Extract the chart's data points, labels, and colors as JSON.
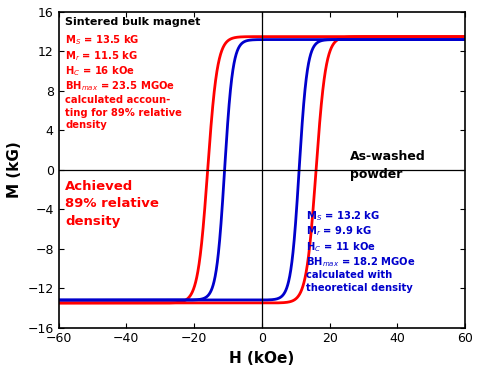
{
  "xlabel": "H (kOe)",
  "ylabel": "M (kG)",
  "xlim": [
    -60,
    60
  ],
  "ylim": [
    -16,
    16
  ],
  "xticks": [
    -60,
    -40,
    -20,
    0,
    20,
    40,
    60
  ],
  "yticks": [
    -16,
    -12,
    -8,
    -4,
    0,
    4,
    8,
    12,
    16
  ],
  "red_color": "#FF0000",
  "blue_color": "#0000CC",
  "background_color": "#FFFFFF",
  "red_Hc": 16.0,
  "red_Ms": 13.5,
  "red_Mr": 11.5,
  "red_steep": 0.18,
  "blue_Hc": 11.0,
  "blue_Ms": 13.2,
  "blue_Mr": 9.9,
  "blue_steep": 0.22
}
